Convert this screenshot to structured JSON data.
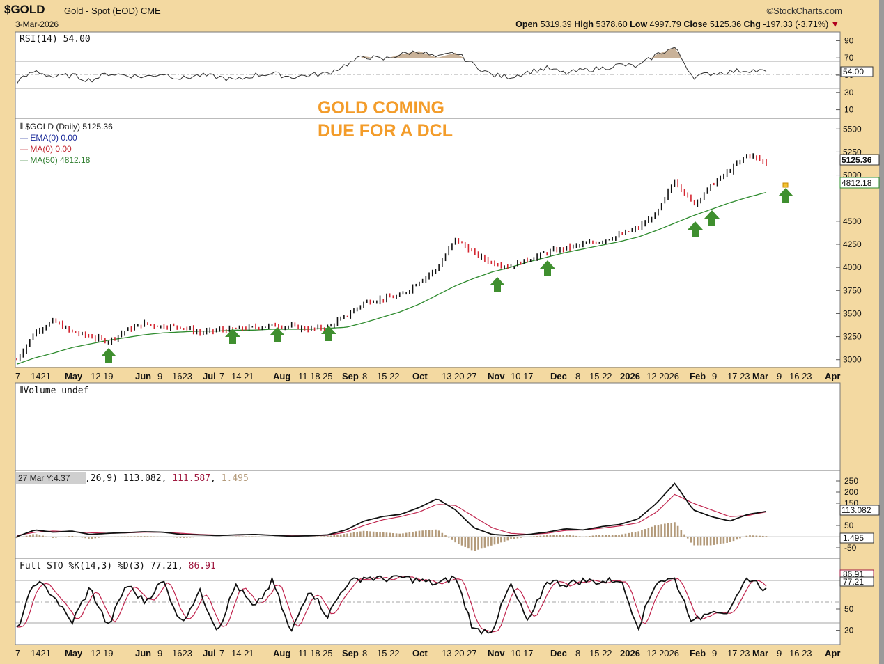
{
  "header": {
    "symbol": "$GOLD",
    "description": "Gold - Spot (EOD)",
    "exchange": "CME",
    "date": "3-Mar-2026",
    "brand": "©StockCharts.com",
    "open_label": "Open",
    "open": "5319.39",
    "high_label": "High",
    "high": "5378.60",
    "low_label": "Low",
    "low": "4997.79",
    "close_label": "Close",
    "close": "5125.36",
    "chg_label": "Chg",
    "chg": "-197.33 (-3.71%)",
    "chg_arrow": "▼"
  },
  "colors": {
    "background": "#f3d9a1",
    "panel": "#ffffff",
    "up_bar": "#111111",
    "down_bar": "#d4242f",
    "ma50": "#2e8b2e",
    "annotation": "#f39c2a",
    "arrow": "#3f8f2f",
    "rsi_fill": "#c9b299",
    "macd_line": "#111111",
    "macd_signal": "#c0254e",
    "histogram": "#b39a7a"
  },
  "rsi": {
    "label": "RSI(14) 54.00",
    "value": "54.00",
    "ticks": [
      "90",
      "70",
      "50",
      "30",
      "10"
    ]
  },
  "price_legend": {
    "title": "$GOLD (Daily) 5125.36",
    "ema": "EMA(0) 0.00",
    "ma": "MA(0) 0.00",
    "ma50": "MA(50) 4812.18",
    "last_close_box": "5125.36",
    "ma50_box": "4812.18"
  },
  "annotation": {
    "line1": "GOLD COMING",
    "line2": "DUE FOR A DCL"
  },
  "volume": {
    "label": "Volume undef"
  },
  "macd": {
    "tooltip": "27 Mar Y:4.37",
    "label_rest": ",26,9) 113.082, ",
    "signal_text": "111.587",
    "sep": ", ",
    "hist_text": "1.495",
    "box_macd": "113.082",
    "box_hist": "1.495",
    "ticks": [
      "250",
      "200",
      "150",
      "50",
      "-50"
    ]
  },
  "stochastic": {
    "label": "Full STO %K(14,3) %D(3) 77.21, ",
    "d_text": "86.91",
    "box_d": "86.91",
    "box_k": "77.21",
    "ticks": [
      "50",
      "20"
    ]
  },
  "x_axis": {
    "labels": [
      {
        "text": "7",
        "major": false
      },
      {
        "text": "1421",
        "major": false
      },
      {
        "text": "May",
        "major": true
      },
      {
        "text": "12 19",
        "major": false
      },
      {
        "text": "Jun",
        "major": true
      },
      {
        "text": "9",
        "major": false
      },
      {
        "text": "1623",
        "major": false
      },
      {
        "text": "Jul",
        "major": true
      },
      {
        "text": "7",
        "major": false
      },
      {
        "text": "14 21",
        "major": false
      },
      {
        "text": "Aug",
        "major": true
      },
      {
        "text": "11 18 25",
        "major": false
      },
      {
        "text": "Sep",
        "major": true
      },
      {
        "text": "8",
        "major": false
      },
      {
        "text": "15 22",
        "major": false
      },
      {
        "text": "Oct",
        "major": true
      },
      {
        "text": "13 20 27",
        "major": false
      },
      {
        "text": "Nov",
        "major": true
      },
      {
        "text": "10 17",
        "major": false
      },
      {
        "text": "Dec",
        "major": true
      },
      {
        "text": "8",
        "major": false
      },
      {
        "text": "15 22",
        "major": false
      },
      {
        "text": "2026",
        "major": true
      },
      {
        "text": "12 2026",
        "major": false
      },
      {
        "text": "Feb",
        "major": true
      },
      {
        "text": "9",
        "major": false
      },
      {
        "text": "17 23",
        "major": false
      },
      {
        "text": "Mar",
        "major": true
      },
      {
        "text": "9",
        "major": false
      },
      {
        "text": "16 23",
        "major": false
      },
      {
        "text": "Apr",
        "major": true
      }
    ]
  },
  "chart_data": {
    "type": "line",
    "title": "$GOLD (Daily) 5125.36",
    "y_ticks": [
      3000,
      3250,
      3500,
      3750,
      4000,
      4250,
      4500,
      5000,
      5250,
      5500
    ],
    "ylim": [
      2930,
      5600
    ],
    "x": [
      "Apr 7",
      "Apr 14",
      "Apr 21",
      "May",
      "May 12",
      "May 19",
      "Jun",
      "Jun 9",
      "Jun 16",
      "Jun 23",
      "Jul",
      "Jul 7",
      "Jul 14",
      "Jul 21",
      "Aug",
      "Aug 11",
      "Aug 18",
      "Aug 25",
      "Sep",
      "Sep 8",
      "Sep 15",
      "Sep 22",
      "Oct",
      "Oct 13",
      "Oct 20",
      "Oct 27",
      "Nov",
      "Nov 10",
      "Nov 17",
      "Dec",
      "Dec 8",
      "Dec 15",
      "Dec 22",
      "2026",
      "Jan 12",
      "Jan 20",
      "Jan 26",
      "Feb",
      "Feb 9",
      "Feb 17",
      "Feb 23",
      "Mar 3"
    ],
    "series": [
      {
        "name": "$GOLD",
        "values": [
          3000,
          3300,
          3420,
          3300,
          3250,
          3200,
          3320,
          3390,
          3360,
          3360,
          3290,
          3320,
          3330,
          3350,
          3370,
          3360,
          3330,
          3350,
          3470,
          3620,
          3660,
          3690,
          3850,
          3990,
          4310,
          4150,
          4050,
          4010,
          4090,
          4160,
          4210,
          4250,
          4290,
          4350,
          4430,
          4580,
          4950,
          4680,
          4890,
          5050,
          5230,
          5125.36
        ]
      },
      {
        "name": "MA(50)",
        "values": [
          2950,
          3020,
          3070,
          3130,
          3170,
          3210,
          3240,
          3270,
          3290,
          3300,
          3310,
          3310,
          3320,
          3320,
          3330,
          3330,
          3330,
          3340,
          3350,
          3400,
          3460,
          3520,
          3600,
          3700,
          3800,
          3880,
          3950,
          4000,
          4060,
          4110,
          4160,
          4200,
          4240,
          4280,
          4330,
          4400,
          4480,
          4560,
          4630,
          4700,
          4760,
          4812.18
        ]
      }
    ],
    "support_arrows_at": [
      "May 19",
      "Jul 14",
      "Aug 1",
      "Aug 25",
      "Nov 3",
      "Nov 20",
      "Feb 2",
      "Feb 6",
      "Mar 12"
    ]
  }
}
